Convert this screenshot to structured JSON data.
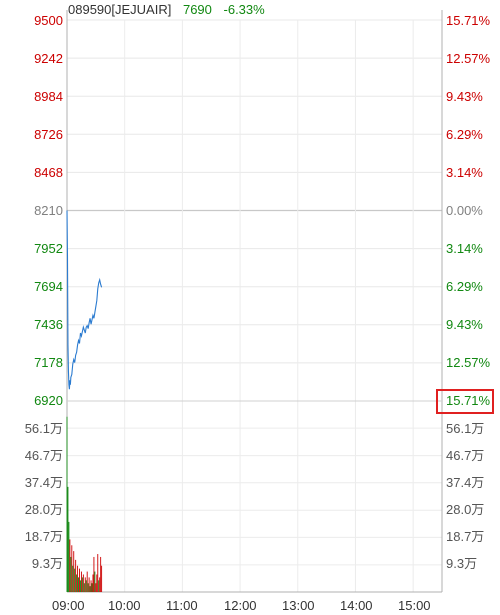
{
  "header": {
    "code": "089590[JEJUAIR]",
    "price": "7690",
    "change": "-6.33%"
  },
  "colors": {
    "up": "#cc0000",
    "down": "#118811",
    "neutral": "#808080",
    "line": "#2b7bd0",
    "highlight": "#e02020"
  },
  "chart_data": {
    "type": "line",
    "price_axis": {
      "ticks": [
        "9500",
        "9242",
        "8984",
        "8726",
        "8468",
        "8210",
        "7952",
        "7694",
        "7436",
        "7178",
        "6920"
      ],
      "values": [
        9500,
        9242,
        8984,
        8726,
        8468,
        8210,
        7952,
        7694,
        7436,
        7178,
        6920
      ],
      "ylim": [
        6920,
        9500
      ],
      "reference": 8210
    },
    "percent_axis": {
      "ticks": [
        "15.71%",
        "12.57%",
        "9.43%",
        "6.29%",
        "3.14%",
        "0.00%",
        "3.14%",
        "6.29%",
        "9.43%",
        "12.57%",
        "15.71%"
      ],
      "highlighted": "15.71%"
    },
    "volume_axis": {
      "ticks": [
        "56.1万",
        "46.7万",
        "37.4万",
        "28.0万",
        "18.7万",
        "9.3万"
      ],
      "ylim": [
        0,
        65.4
      ],
      "unit": "万"
    },
    "x_ticks": [
      "09:00",
      "10:00",
      "11:00",
      "12:00",
      "13:00",
      "14:00",
      "15:00"
    ],
    "x_range_minutes": [
      0,
      390
    ],
    "price_series": {
      "t": [
        0,
        0.5,
        1,
        1.5,
        2,
        2.5,
        3,
        3.5,
        4,
        5,
        6,
        7,
        8,
        9,
        10,
        11,
        12,
        13,
        14,
        15,
        16,
        17,
        18,
        19,
        20,
        21,
        22,
        23,
        24,
        25,
        26,
        27,
        28,
        29,
        30,
        31,
        32,
        33,
        34,
        35,
        36
      ],
      "values": [
        8210,
        7900,
        7300,
        7120,
        7030,
        7000,
        7060,
        7030,
        7080,
        7100,
        7170,
        7200,
        7180,
        7230,
        7250,
        7300,
        7330,
        7310,
        7380,
        7360,
        7390,
        7420,
        7400,
        7380,
        7420,
        7430,
        7410,
        7450,
        7480,
        7440,
        7470,
        7500,
        7480,
        7520,
        7560,
        7600,
        7680,
        7720,
        7740,
        7710,
        7690
      ]
    },
    "volume_series": {
      "t": [
        0,
        1,
        2,
        3,
        4,
        5,
        6,
        7,
        8,
        9,
        10,
        11,
        12,
        13,
        14,
        15,
        16,
        17,
        18,
        19,
        20,
        21,
        22,
        23,
        24,
        25,
        26,
        27,
        28,
        29,
        30,
        31,
        32,
        33,
        34,
        35,
        36
      ],
      "values": [
        60,
        36,
        24,
        18,
        12,
        16,
        9,
        14,
        8,
        11,
        6,
        9,
        5,
        8,
        4,
        7,
        5,
        6,
        3,
        5,
        4,
        7,
        3,
        5,
        2,
        4,
        3,
        6,
        12,
        7,
        3,
        6,
        13,
        4,
        5,
        12,
        9
      ],
      "direction": [
        "d",
        "d",
        "d",
        "u",
        "d",
        "u",
        "d",
        "u",
        "d",
        "u",
        "d",
        "u",
        "d",
        "u",
        "d",
        "u",
        "d",
        "u",
        "d",
        "u",
        "d",
        "u",
        "d",
        "u",
        "d",
        "u",
        "d",
        "u",
        "u",
        "d",
        "u",
        "u",
        "u",
        "d",
        "u",
        "u",
        "u"
      ]
    }
  }
}
